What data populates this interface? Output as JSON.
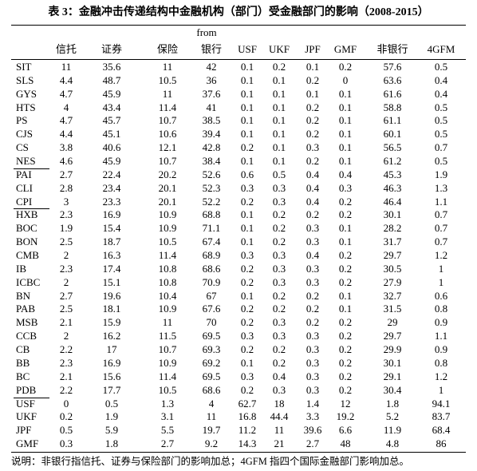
{
  "title": "表 3：金融冲击传递结构中金融机构（部门）受金融部门的影响（2008-2015）",
  "table": {
    "from_label": "from",
    "columns": [
      "信托",
      "证券",
      "保险",
      "银行",
      "USF",
      "UKF",
      "JPF",
      "GMF",
      "非银行",
      "4GFM"
    ],
    "rows": [
      [
        "SIT",
        11,
        35.6,
        11,
        42,
        0.1,
        0.2,
        0.1,
        0.2,
        57.6,
        0.5
      ],
      [
        "SLS",
        4.4,
        48.7,
        10.5,
        36,
        0.1,
        0.1,
        0.2,
        0,
        63.6,
        0.4
      ],
      [
        "GYS",
        4.7,
        45.9,
        11,
        37.6,
        0.1,
        0.1,
        0.1,
        0.1,
        61.6,
        0.4
      ],
      [
        "HTS",
        4,
        43.4,
        11.4,
        41,
        0.1,
        0.1,
        0.2,
        0.1,
        58.8,
        0.5
      ],
      [
        "PS",
        4.7,
        45.7,
        10.7,
        38.5,
        0.1,
        0.1,
        0.2,
        0.1,
        61.1,
        0.5
      ],
      [
        "CJS",
        4.4,
        45.1,
        10.6,
        39.4,
        0.1,
        0.1,
        0.2,
        0.1,
        60.1,
        0.5
      ],
      [
        "CS",
        3.8,
        40.6,
        12.1,
        42.8,
        0.2,
        0.1,
        0.3,
        0.1,
        56.5,
        0.7
      ],
      [
        "NES",
        4.6,
        45.9,
        10.7,
        38.4,
        0.1,
        0.1,
        0.2,
        0.1,
        61.2,
        0.5
      ],
      [
        "PAI",
        2.7,
        22.4,
        20.2,
        52.6,
        0.6,
        0.5,
        0.4,
        0.4,
        45.3,
        1.9
      ],
      [
        "CLI",
        2.8,
        23.4,
        20.1,
        52.3,
        0.3,
        0.3,
        0.4,
        0.3,
        46.3,
        1.3
      ],
      [
        "CPI",
        3,
        23.3,
        20.1,
        52.2,
        0.2,
        0.3,
        0.4,
        0.2,
        46.4,
        1.1
      ],
      [
        "HXB",
        2.3,
        16.9,
        10.9,
        68.8,
        0.1,
        0.2,
        0.2,
        0.2,
        30.1,
        0.7
      ],
      [
        "BOC",
        1.9,
        15.4,
        10.9,
        71.1,
        0.1,
        0.2,
        0.3,
        0.1,
        28.2,
        0.7
      ],
      [
        "BON",
        2.5,
        18.7,
        10.5,
        67.4,
        0.1,
        0.2,
        0.3,
        0.1,
        31.7,
        0.7
      ],
      [
        "CMB",
        2,
        16.3,
        11.4,
        68.9,
        0.3,
        0.3,
        0.4,
        0.2,
        29.7,
        1.2
      ],
      [
        "IB",
        2.3,
        17.4,
        10.8,
        68.6,
        0.2,
        0.3,
        0.3,
        0.2,
        30.5,
        1
      ],
      [
        "ICBC",
        2,
        15.1,
        10.8,
        70.9,
        0.2,
        0.3,
        0.3,
        0.2,
        27.9,
        1
      ],
      [
        "BN",
        2.7,
        19.6,
        10.4,
        67,
        0.1,
        0.2,
        0.2,
        0.1,
        32.7,
        0.6
      ],
      [
        "PAB",
        2.5,
        18.1,
        10.9,
        67.6,
        0.2,
        0.2,
        0.2,
        0.1,
        31.5,
        0.8
      ],
      [
        "MSB",
        2.1,
        15.9,
        11,
        70,
        0.2,
        0.3,
        0.2,
        0.2,
        29,
        0.9
      ],
      [
        "CCB",
        2,
        16.2,
        11.5,
        69.5,
        0.3,
        0.3,
        0.3,
        0.2,
        29.7,
        1.1
      ],
      [
        "CB",
        2.2,
        17,
        10.7,
        69.3,
        0.2,
        0.2,
        0.3,
        0.2,
        29.9,
        0.9
      ],
      [
        "BB",
        2.3,
        16.9,
        10.9,
        69.2,
        0.1,
        0.2,
        0.3,
        0.2,
        30.1,
        0.8
      ],
      [
        "BC",
        2.1,
        15.6,
        11.4,
        69.5,
        0.3,
        0.4,
        0.3,
        0.2,
        29.1,
        1.2
      ],
      [
        "PDB",
        2.2,
        17.7,
        10.5,
        68.6,
        0.2,
        0.3,
        0.3,
        0.2,
        30.4,
        1
      ],
      [
        "USF",
        0,
        0.5,
        1.3,
        4,
        62.7,
        18,
        1.4,
        12,
        1.8,
        94.1
      ],
      [
        "UKF",
        0.2,
        1.9,
        3.1,
        11,
        16.8,
        44.4,
        3.3,
        19.2,
        5.2,
        83.7
      ],
      [
        "JPF",
        0.5,
        5.9,
        5.5,
        19.7,
        11.2,
        11,
        39.6,
        6.6,
        11.9,
        68.4
      ],
      [
        "GMF",
        0.3,
        1.8,
        2.7,
        9.2,
        14.3,
        21,
        2.7,
        48,
        4.8,
        86
      ]
    ]
  },
  "note": "说明：非银行指信托、证券与保险部门的影响加总；4GFM 指四个国际金融部门影响加总。"
}
